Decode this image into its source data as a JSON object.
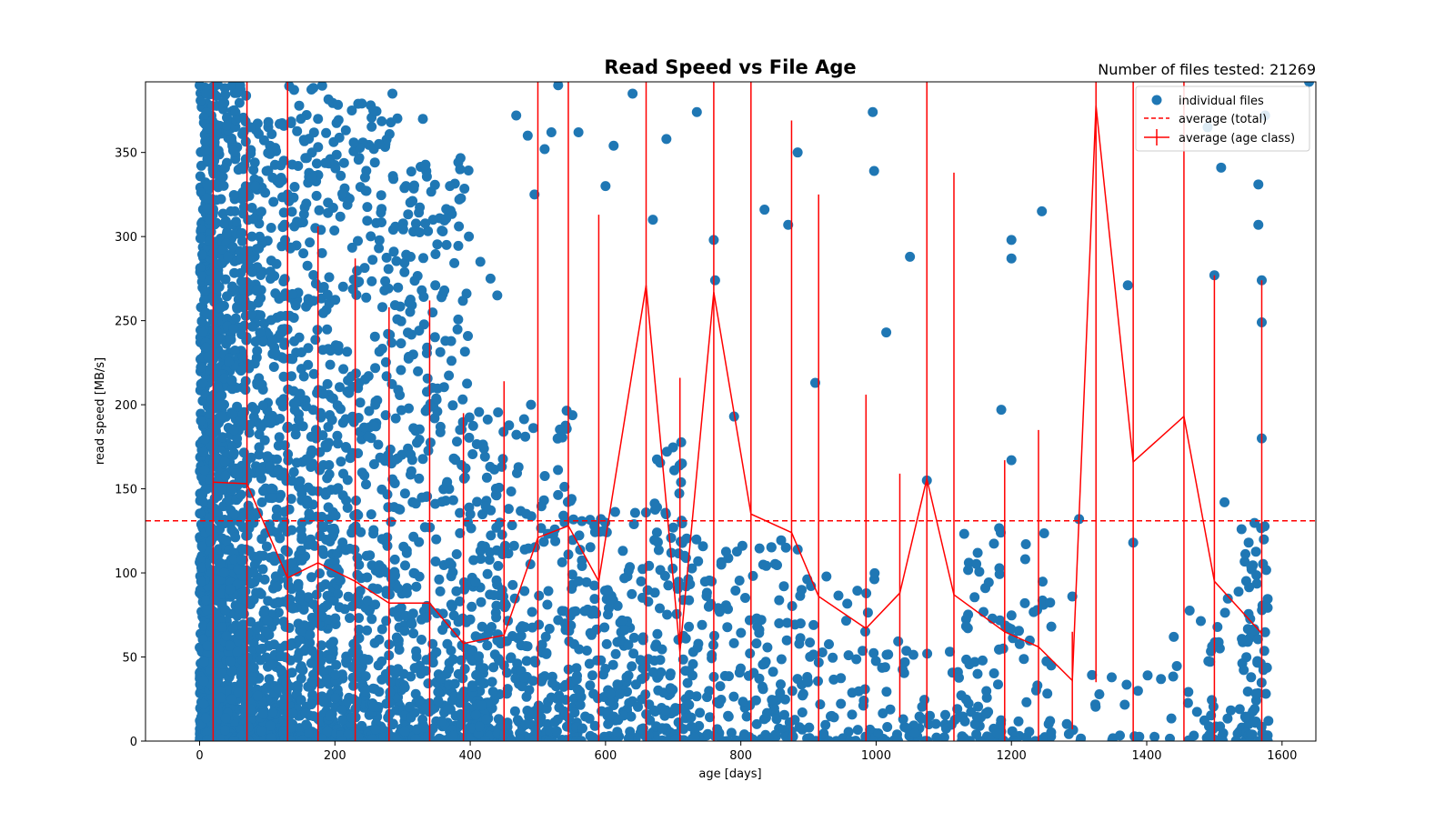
{
  "chart_data": {
    "type": "scatter",
    "title": "Read Speed vs File Age",
    "annotation": "Number of files tested: 21269",
    "xlabel": "age [days]",
    "ylabel": "read speed [MB/s]",
    "xlim": [
      -80,
      1650
    ],
    "ylim": [
      0,
      392
    ],
    "xticks": [
      0,
      200,
      400,
      600,
      800,
      1000,
      1200,
      1400,
      1600
    ],
    "yticks": [
      0,
      50,
      100,
      150,
      200,
      250,
      300,
      350
    ],
    "legend_position": "top-right",
    "colors": {
      "scatter": "#1f77b4",
      "average": "#ff0000"
    },
    "legend": [
      {
        "label": "individual files",
        "kind": "scatter"
      },
      {
        "label": "average (total)",
        "kind": "dashed"
      },
      {
        "label": "average (age class)",
        "kind": "errorbar"
      }
    ],
    "total_average": 131,
    "age_class_average": {
      "x": [
        20,
        70,
        130,
        175,
        230,
        280,
        340,
        390,
        450,
        500,
        545,
        590,
        660,
        710,
        760,
        815,
        875,
        915,
        985,
        1035,
        1075,
        1115,
        1190,
        1240,
        1290,
        1325,
        1380,
        1455,
        1500,
        1570
      ],
      "y": [
        154,
        153,
        97,
        106,
        95,
        82,
        82,
        58,
        63,
        121,
        128,
        95,
        271,
        53,
        267,
        135,
        124,
        86,
        67,
        88,
        156,
        87,
        65,
        56,
        36,
        378,
        166,
        193,
        95,
        64
      ],
      "err_low": [
        0,
        0,
        0,
        0,
        0,
        0,
        0,
        0,
        0,
        0,
        0,
        0,
        0,
        0,
        0,
        0,
        0,
        0,
        0,
        14,
        0,
        0,
        0,
        0,
        7,
        35,
        0,
        0,
        0,
        0
      ],
      "err_high": [
        392,
        392,
        392,
        306,
        287,
        258,
        262,
        195,
        214,
        392,
        392,
        313,
        392,
        216,
        392,
        392,
        369,
        325,
        206,
        159,
        392,
        338,
        167,
        185,
        65,
        392,
        392,
        392,
        277,
        274
      ]
    },
    "scatter_clusters": [
      {
        "x": [
          0,
          30
        ],
        "y": [
          0,
          392
        ],
        "n": 900
      },
      {
        "x": [
          30,
          70
        ],
        "y": [
          0,
          392
        ],
        "n": 600
      },
      {
        "x": [
          70,
          130
        ],
        "y": [
          0,
          370
        ],
        "n": 500
      },
      {
        "x": [
          130,
          200
        ],
        "y": [
          0,
          390
        ],
        "n": 450
      },
      {
        "x": [
          200,
          300
        ],
        "y": [
          0,
          380
        ],
        "n": 450
      },
      {
        "x": [
          300,
          400
        ],
        "y": [
          0,
          350
        ],
        "n": 350
      },
      {
        "x": [
          400,
          460
        ],
        "y": [
          0,
          200
        ],
        "n": 200
      },
      {
        "x": [
          460,
          560
        ],
        "y": [
          0,
          200
        ],
        "n": 200
      },
      {
        "x": [
          560,
          660
        ],
        "y": [
          0,
          140
        ],
        "n": 150
      },
      {
        "x": [
          660,
          720
        ],
        "y": [
          0,
          180
        ],
        "n": 120
      },
      {
        "x": [
          720,
          800
        ],
        "y": [
          0,
          120
        ],
        "n": 80
      },
      {
        "x": [
          800,
          900
        ],
        "y": [
          0,
          120
        ],
        "n": 100
      },
      {
        "x": [
          900,
          1000
        ],
        "y": [
          0,
          100
        ],
        "n": 60
      },
      {
        "x": [
          1000,
          1130
        ],
        "y": [
          0,
          60
        ],
        "n": 60
      },
      {
        "x": [
          1130,
          1260
        ],
        "y": [
          0,
          130
        ],
        "n": 100
      },
      {
        "x": [
          1260,
          1460
        ],
        "y": [
          0,
          50
        ],
        "n": 25
      },
      {
        "x": [
          1460,
          1540
        ],
        "y": [
          0,
          90
        ],
        "n": 40
      },
      {
        "x": [
          1540,
          1580
        ],
        "y": [
          0,
          130
        ],
        "n": 80
      }
    ],
    "points": {
      "x": [
        0,
        10,
        20,
        35,
        60,
        75,
        20,
        50,
        85,
        130,
        175,
        225,
        265,
        305,
        345,
        365,
        285,
        330,
        370,
        398,
        415,
        430,
        385,
        468,
        485,
        495,
        440,
        510,
        520,
        530,
        560,
        600,
        612,
        640,
        670,
        690,
        735,
        760,
        762,
        790,
        835,
        870,
        884,
        910,
        995,
        997,
        1015,
        1050,
        1075,
        1185,
        1200,
        1200,
        1245,
        1300,
        1372,
        1380,
        1490,
        1500,
        1510,
        1515,
        1565,
        1565,
        1570,
        1570,
        1570,
        1575,
        1290,
        1440,
        1200,
        1640
      ],
      "y": [
        390,
        385,
        290,
        380,
        390,
        365,
        250,
        245,
        232,
        325,
        370,
        375,
        355,
        330,
        310,
        295,
        385,
        370,
        330,
        300,
        285,
        275,
        340,
        372,
        360,
        325,
        265,
        352,
        362,
        390,
        362,
        330,
        354,
        385,
        310,
        358,
        374,
        298,
        274,
        193,
        316,
        307,
        350,
        213,
        374,
        339,
        243,
        288,
        155,
        197,
        298,
        287,
        315,
        132,
        271,
        118,
        365,
        277,
        341,
        142,
        331,
        307,
        249,
        274,
        180,
        372,
        86,
        62,
        167,
        392
      ]
    }
  }
}
